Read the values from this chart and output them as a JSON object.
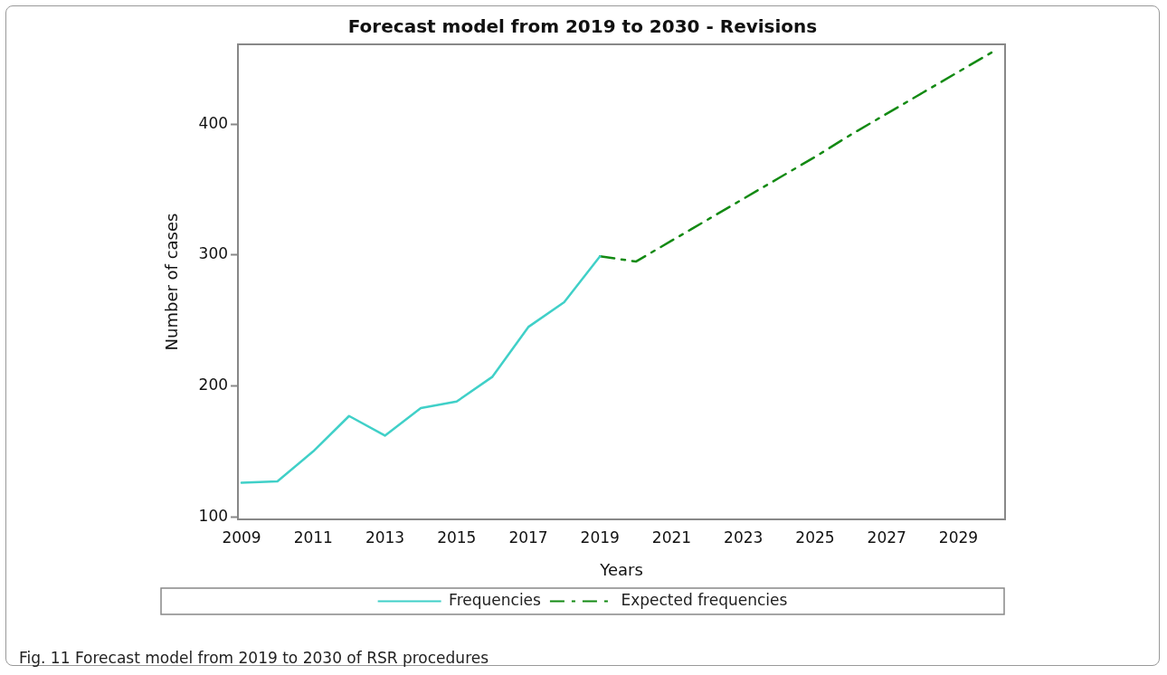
{
  "chart_data": {
    "type": "line",
    "title": "Forecast model from 2019 to 2030 - Revisions",
    "xlabel": "Years",
    "ylabel": "Number of cases",
    "series": [
      {
        "name": "Frequencies",
        "color": "#40d0c8",
        "x": [
          2009,
          2010,
          2011,
          2012,
          2013,
          2014,
          2015,
          2016,
          2017,
          2018,
          2019
        ],
        "values": [
          126,
          127,
          150,
          177,
          162,
          183,
          188,
          207,
          245,
          264,
          299
        ]
      },
      {
        "name": "Expected frequencies",
        "color": "#138a13",
        "line_style": "dashed",
        "x": [
          2019,
          2020,
          2021,
          2022,
          2023,
          2024,
          2025,
          2026,
          2027,
          2028,
          2029,
          2030
        ],
        "values": [
          299,
          295,
          311,
          327,
          343,
          359,
          375,
          392,
          408,
          424,
          440,
          456
        ]
      }
    ],
    "xlim": [
      2008.9,
      2030.3
    ],
    "xticks": [
      2009,
      2011,
      2013,
      2015,
      2017,
      2019,
      2021,
      2023,
      2025,
      2027,
      2029
    ],
    "ylim": [
      98,
      461
    ],
    "yticks": [
      100,
      200,
      300,
      400
    ],
    "grid": false,
    "legend": "bottom",
    "marker": "none",
    "line_style": "solid",
    "annotations": [
      "Fig. 11  Forecast model from 2019 to 2030 of RSR procedures"
    ]
  }
}
